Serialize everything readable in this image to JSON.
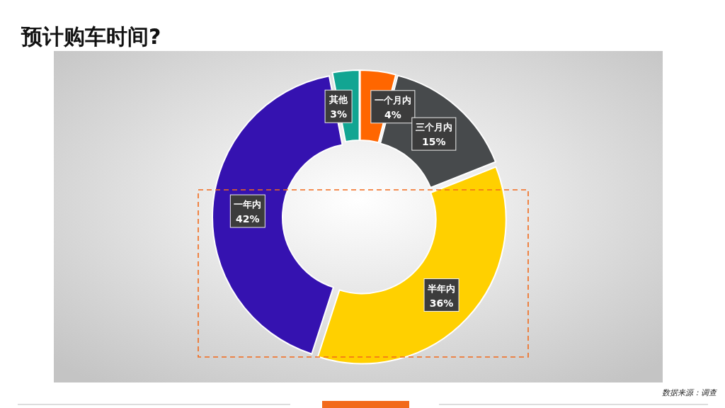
{
  "chart_data": {
    "type": "donut",
    "title": "预计购车时间?",
    "categories": [
      "一个月内",
      "三个月内",
      "半年内",
      "一年内",
      "其他"
    ],
    "values": [
      4,
      15,
      36,
      42,
      3
    ],
    "colors": [
      "#ff6600",
      "#474a4c",
      "#ffd000",
      "#3512b0",
      "#12a592"
    ],
    "value_labels": [
      "4%",
      "15%",
      "36%",
      "42%",
      "3%"
    ],
    "annotations": [
      "数据来源：调查"
    ]
  }
}
